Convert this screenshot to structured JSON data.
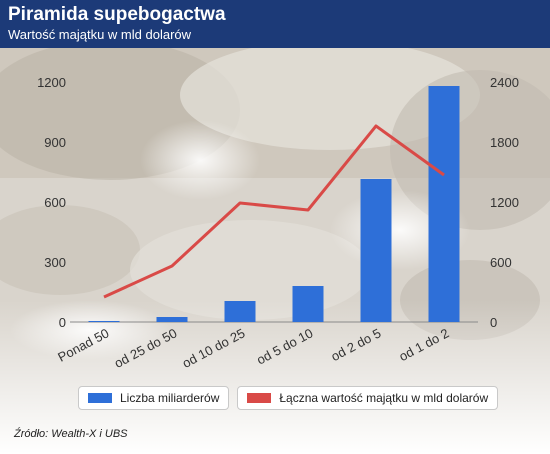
{
  "header": {
    "title": "Piramida supebogactwa",
    "subtitle": "Wartość majątku w mld dolarów"
  },
  "colors": {
    "header_bg": "#1c3a78",
    "bar": "#2e6fd8",
    "line": "#d94a47"
  },
  "chart_data": {
    "type": "bar",
    "categories": [
      "Ponad 50",
      "od 25 do 50",
      "od 10 do 25",
      "od 5 do 10",
      "od 2 do 5",
      "od 1 do 2"
    ],
    "series": [
      {
        "name": "Liczba miliarderów",
        "type": "bar",
        "axis": "left",
        "values": [
          5,
          25,
          105,
          180,
          715,
          1180
        ]
      },
      {
        "name": "Łączna wartość majątku w mld dolarów",
        "type": "line",
        "axis": "right",
        "values": [
          250,
          560,
          1190,
          1120,
          1960,
          1470
        ]
      }
    ],
    "y_left": {
      "ylim": [
        0,
        1200
      ],
      "ticks": [
        "0",
        "300",
        "600",
        "900",
        "1200"
      ]
    },
    "y_right": {
      "ylim": [
        0,
        2400
      ],
      "ticks": [
        "0",
        "600",
        "1200",
        "1800",
        "2400"
      ]
    },
    "legend_placement": "bottom",
    "grid": false
  },
  "source": "Źródło: Wealth-X i UBS"
}
